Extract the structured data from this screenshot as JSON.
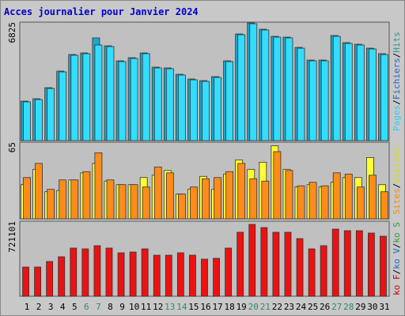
{
  "chart_data": [
    {
      "type": "bar",
      "title": "Acces journalier pour Janvier 2024",
      "legend": [
        {
          "label": "Pages",
          "color": "#33ccee"
        },
        {
          "label": "Fichiers",
          "color": "#2266cc"
        },
        {
          "label": "Hits",
          "color": "#339988"
        }
      ],
      "legend_separator": "/",
      "series": [
        {
          "color": "#1aa8cc",
          "values": [
            2275,
            2412,
            3049,
            4004,
            4960,
            5051,
            5915,
            5460,
            4596,
            4778,
            5051,
            4232,
            4186,
            3822,
            3549,
            3458,
            3686,
            4596,
            6143,
            6780,
            6416,
            6006,
            5961,
            5369,
            4641,
            4641,
            6052,
            5642,
            5551,
            5324,
            5005
          ]
        },
        {
          "color": "#33ddff",
          "values": [
            2230,
            2367,
            3004,
            3959,
            4915,
            5006,
            5506,
            5415,
            4551,
            4733,
            5006,
            4187,
            4141,
            3777,
            3504,
            3413,
            3641,
            4551,
            6098,
            6735,
            6371,
            5961,
            5916,
            5324,
            4596,
            4596,
            6007,
            5597,
            5506,
            5279,
            4960
          ]
        }
      ],
      "ylim": [
        0,
        6825
      ],
      "yticks": [
        6825
      ]
    },
    {
      "type": "bar",
      "legend": [
        {
          "label": "Sites",
          "color": "#ff8800"
        },
        {
          "label": "Visites",
          "color": "#dddd00"
        }
      ],
      "legend_separator": "/",
      "series": [
        {
          "color": "#ffff33",
          "values": [
            29,
            42,
            23,
            24,
            33,
            39,
            47,
            32,
            29,
            29,
            35,
            37,
            41,
            21,
            25,
            36,
            25,
            38,
            50,
            42,
            48,
            62,
            42,
            27,
            29,
            27,
            31,
            35,
            35,
            52,
            29
          ]
        },
        {
          "color": "#ff8c1a",
          "values": [
            35,
            47,
            25,
            33,
            33,
            40,
            56,
            33,
            29,
            29,
            27,
            44,
            39,
            21,
            27,
            34,
            35,
            40,
            47,
            34,
            32,
            57,
            41,
            28,
            31,
            28,
            39,
            38,
            27,
            37,
            23
          ]
        }
      ],
      "ylim": [
        0,
        65
      ],
      "yticks": [
        65
      ]
    },
    {
      "type": "bar",
      "legend": [
        {
          "label": "ko F",
          "color": "#cc0000"
        },
        {
          "label": "ko V",
          "color": "#2266cc"
        },
        {
          "label": "ko S",
          "color": "#339933"
        }
      ],
      "legend_separator": "/",
      "categories": [
        "1",
        "2",
        "3",
        "4",
        "5",
        "6",
        "7",
        "8",
        "9",
        "10",
        "11",
        "12",
        "13",
        "14",
        "15",
        "16",
        "17",
        "18",
        "19",
        "20",
        "21",
        "22",
        "23",
        "24",
        "25",
        "26",
        "27",
        "28",
        "29",
        "30",
        "31"
      ],
      "category_colors": [
        "#000000",
        "#000000",
        "#000000",
        "#000000",
        "#000000",
        "#338877",
        "#338877",
        "#000000",
        "#000000",
        "#000000",
        "#000000",
        "#000000",
        "#338877",
        "#338877",
        "#000000",
        "#000000",
        "#000000",
        "#000000",
        "#000000",
        "#338877",
        "#338877",
        "#000000",
        "#000000",
        "#000000",
        "#000000",
        "#000000",
        "#338877",
        "#338877",
        "#000000",
        "#000000",
        "#000000"
      ],
      "series": [
        {
          "color": "#ee1111",
          "values": [
            280849,
            280849,
            333982,
            379525,
            463021,
            455430,
            485792,
            463021,
            417478,
            425068,
            455430,
            394706,
            394706,
            417478,
            394706,
            356754,
            364344,
            463021,
            614831,
            690736,
            660374,
            614831,
            614831,
            554107,
            455430,
            485792,
            645193,
            630012,
            630012,
            607240,
            576878
          ]
        }
      ],
      "ylim": [
        0,
        721101
      ],
      "yticks": [
        721101
      ]
    }
  ]
}
